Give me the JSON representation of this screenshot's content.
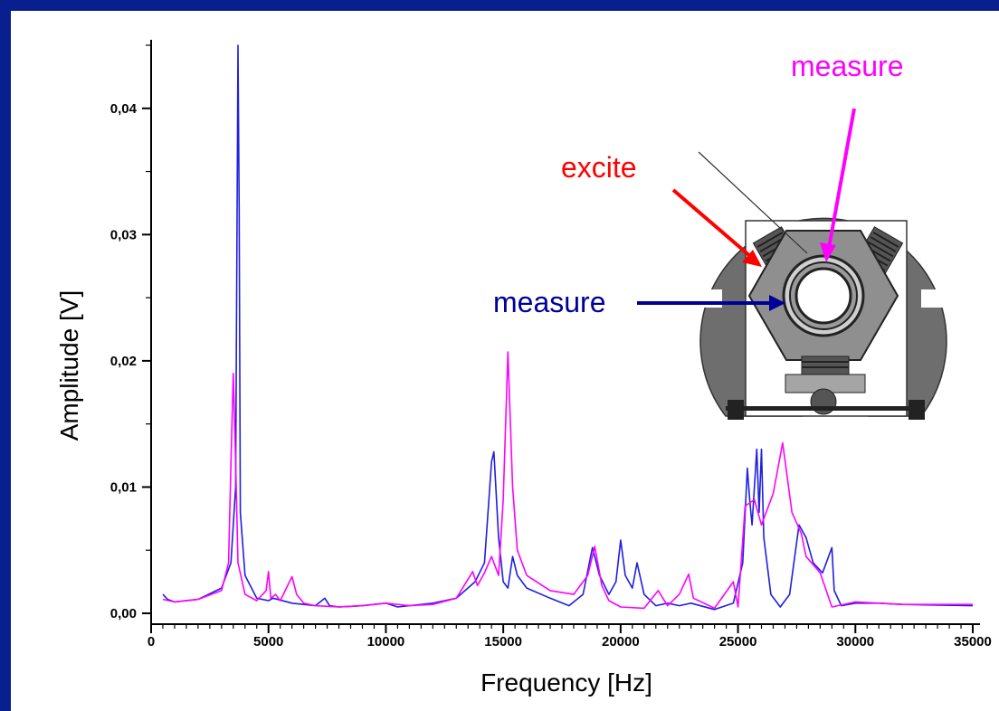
{
  "chart_data": {
    "type": "line",
    "title": "",
    "xlabel": "Frequency [Hz]",
    "ylabel": "Amplitude [V]",
    "xlim": [
      0,
      35000
    ],
    "ylim": [
      0,
      0.045
    ],
    "x_ticks": [
      "0",
      "5000",
      "10000",
      "15000",
      "20000",
      "25000",
      "30000",
      "35000"
    ],
    "x_tick_values": [
      0,
      5000,
      10000,
      15000,
      20000,
      25000,
      30000,
      35000
    ],
    "y_ticks": [
      "0,00",
      "0,01",
      "0,02",
      "0,03",
      "0,04"
    ],
    "y_tick_values": [
      0,
      0.01,
      0.02,
      0.03,
      0.04
    ],
    "grid": false,
    "series": [
      {
        "color": "#1f1fe0",
        "points": [
          [
            500,
            0.0015
          ],
          [
            700,
            0.0011
          ],
          [
            1000,
            0.0009
          ],
          [
            2000,
            0.0011
          ],
          [
            3000,
            0.002
          ],
          [
            3400,
            0.004
          ],
          [
            3600,
            0.01
          ],
          [
            3700,
            0.045
          ],
          [
            3750,
            0.032
          ],
          [
            3800,
            0.008
          ],
          [
            4000,
            0.003
          ],
          [
            4500,
            0.0012
          ],
          [
            5000,
            0.001
          ],
          [
            5200,
            0.0012
          ],
          [
            6000,
            0.0008
          ],
          [
            7000,
            0.0006
          ],
          [
            7400,
            0.0012
          ],
          [
            7600,
            0.0006
          ],
          [
            8000,
            0.0005
          ],
          [
            9000,
            0.0006
          ],
          [
            10000,
            0.0008
          ],
          [
            10500,
            0.0005
          ],
          [
            12000,
            0.0008
          ],
          [
            13000,
            0.0012
          ],
          [
            13800,
            0.0025
          ],
          [
            14200,
            0.004
          ],
          [
            14500,
            0.012
          ],
          [
            14600,
            0.0128
          ],
          [
            14800,
            0.006
          ],
          [
            15000,
            0.0025
          ],
          [
            15200,
            0.002
          ],
          [
            15400,
            0.0045
          ],
          [
            15600,
            0.003
          ],
          [
            16000,
            0.002
          ],
          [
            17000,
            0.0012
          ],
          [
            17800,
            0.0006
          ],
          [
            18400,
            0.0015
          ],
          [
            18800,
            0.0052
          ],
          [
            19100,
            0.003
          ],
          [
            19500,
            0.0015
          ],
          [
            19800,
            0.0025
          ],
          [
            20000,
            0.0058
          ],
          [
            20200,
            0.003
          ],
          [
            20500,
            0.002
          ],
          [
            20700,
            0.004
          ],
          [
            21000,
            0.0015
          ],
          [
            21500,
            0.0006
          ],
          [
            22000,
            0.0008
          ],
          [
            22500,
            0.0006
          ],
          [
            23000,
            0.0008
          ],
          [
            24000,
            0.0003
          ],
          [
            24800,
            0.0008
          ],
          [
            25200,
            0.004
          ],
          [
            25400,
            0.0115
          ],
          [
            25500,
            0.009
          ],
          [
            25600,
            0.007
          ],
          [
            25800,
            0.013
          ],
          [
            25900,
            0.008
          ],
          [
            26000,
            0.013
          ],
          [
            26100,
            0.006
          ],
          [
            26400,
            0.0015
          ],
          [
            26800,
            0.0005
          ],
          [
            27200,
            0.0015
          ],
          [
            27600,
            0.007
          ],
          [
            27900,
            0.006
          ],
          [
            28200,
            0.004
          ],
          [
            28600,
            0.0032
          ],
          [
            29000,
            0.0052
          ],
          [
            29100,
            0.0018
          ],
          [
            29400,
            0.0006
          ],
          [
            30000,
            0.0008
          ],
          [
            31000,
            0.0008
          ],
          [
            32000,
            0.0007
          ],
          [
            35000,
            0.0006
          ]
        ]
      },
      {
        "color": "#ff00ff",
        "points": [
          [
            500,
            0.0011
          ],
          [
            1000,
            0.0009
          ],
          [
            2000,
            0.0011
          ],
          [
            3000,
            0.0018
          ],
          [
            3300,
            0.004
          ],
          [
            3400,
            0.0118
          ],
          [
            3500,
            0.019
          ],
          [
            3600,
            0.012
          ],
          [
            3700,
            0.004
          ],
          [
            4000,
            0.0015
          ],
          [
            4500,
            0.001
          ],
          [
            4900,
            0.0018
          ],
          [
            5000,
            0.0033
          ],
          [
            5100,
            0.0012
          ],
          [
            5300,
            0.0015
          ],
          [
            5500,
            0.001
          ],
          [
            6000,
            0.0029
          ],
          [
            6200,
            0.0015
          ],
          [
            6500,
            0.0008
          ],
          [
            7000,
            0.0006
          ],
          [
            8000,
            0.0005
          ],
          [
            9000,
            0.0006
          ],
          [
            10000,
            0.0008
          ],
          [
            11000,
            0.0006
          ],
          [
            12000,
            0.0007
          ],
          [
            13000,
            0.0012
          ],
          [
            13700,
            0.0033
          ],
          [
            13900,
            0.0022
          ],
          [
            14200,
            0.0032
          ],
          [
            14500,
            0.0045
          ],
          [
            14800,
            0.003
          ],
          [
            15000,
            0.009
          ],
          [
            15200,
            0.0207
          ],
          [
            15400,
            0.01
          ],
          [
            15600,
            0.005
          ],
          [
            16000,
            0.003
          ],
          [
            17000,
            0.0018
          ],
          [
            18000,
            0.0015
          ],
          [
            18600,
            0.003
          ],
          [
            18900,
            0.0053
          ],
          [
            19200,
            0.0022
          ],
          [
            19500,
            0.001
          ],
          [
            20000,
            0.0005
          ],
          [
            21000,
            0.0004
          ],
          [
            21600,
            0.0018
          ],
          [
            22000,
            0.0006
          ],
          [
            22500,
            0.0015
          ],
          [
            22900,
            0.0031
          ],
          [
            23100,
            0.0012
          ],
          [
            24000,
            0.0004
          ],
          [
            24800,
            0.0025
          ],
          [
            25000,
            0.0005
          ],
          [
            25300,
            0.0085
          ],
          [
            25700,
            0.009
          ],
          [
            26000,
            0.007
          ],
          [
            26500,
            0.0095
          ],
          [
            26900,
            0.0135
          ],
          [
            27300,
            0.008
          ],
          [
            27700,
            0.0063
          ],
          [
            27900,
            0.0045
          ],
          [
            28500,
            0.0032
          ],
          [
            29000,
            0.0005
          ],
          [
            30000,
            0.0009
          ],
          [
            31000,
            0.0008
          ],
          [
            32000,
            0.0007
          ],
          [
            35000,
            0.0007
          ]
        ]
      }
    ]
  },
  "inset": {
    "excite_label": "excite",
    "measure_top_label": "measure",
    "measure_left_label": "measure",
    "excite_color": "#ff0000",
    "measure_top_color": "#ff00ff",
    "measure_left_color": "#000099"
  }
}
